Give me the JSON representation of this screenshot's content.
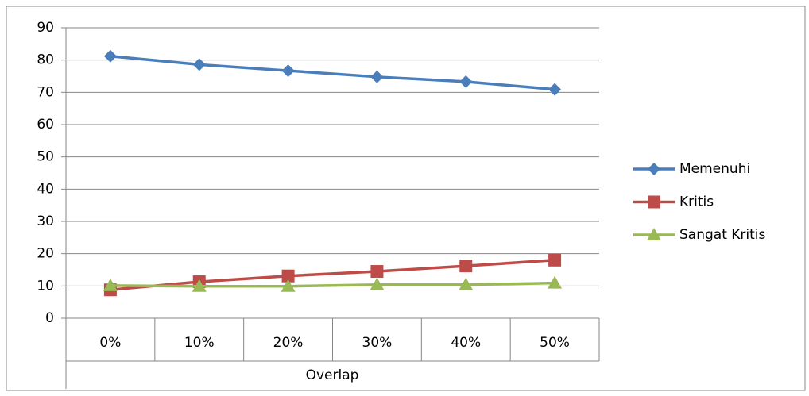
{
  "chart_data": {
    "type": "line",
    "x_label": "Overlap",
    "categories": [
      "0%",
      "10%",
      "20%",
      "30%",
      "40%",
      "50%"
    ],
    "series": [
      {
        "name": "Memenuhi",
        "color": "#4a7ebb",
        "values": [
          81.2,
          78.6,
          76.7,
          74.8,
          73.3,
          70.9
        ]
      },
      {
        "name": "Kritis",
        "color": "#be4b48",
        "values": [
          8.8,
          11.3,
          13.1,
          14.5,
          16.2,
          18
        ]
      },
      {
        "name": "Sangat Kritis",
        "color": "#98b954",
        "values": [
          10.1,
          9.9,
          9.9,
          10.4,
          10.4,
          10.9
        ]
      }
    ],
    "ylim": [
      0,
      90
    ],
    "yticks": [
      0,
      10,
      20,
      30,
      40,
      50,
      60,
      70,
      80,
      90
    ],
    "grid": true,
    "legend": "right"
  }
}
